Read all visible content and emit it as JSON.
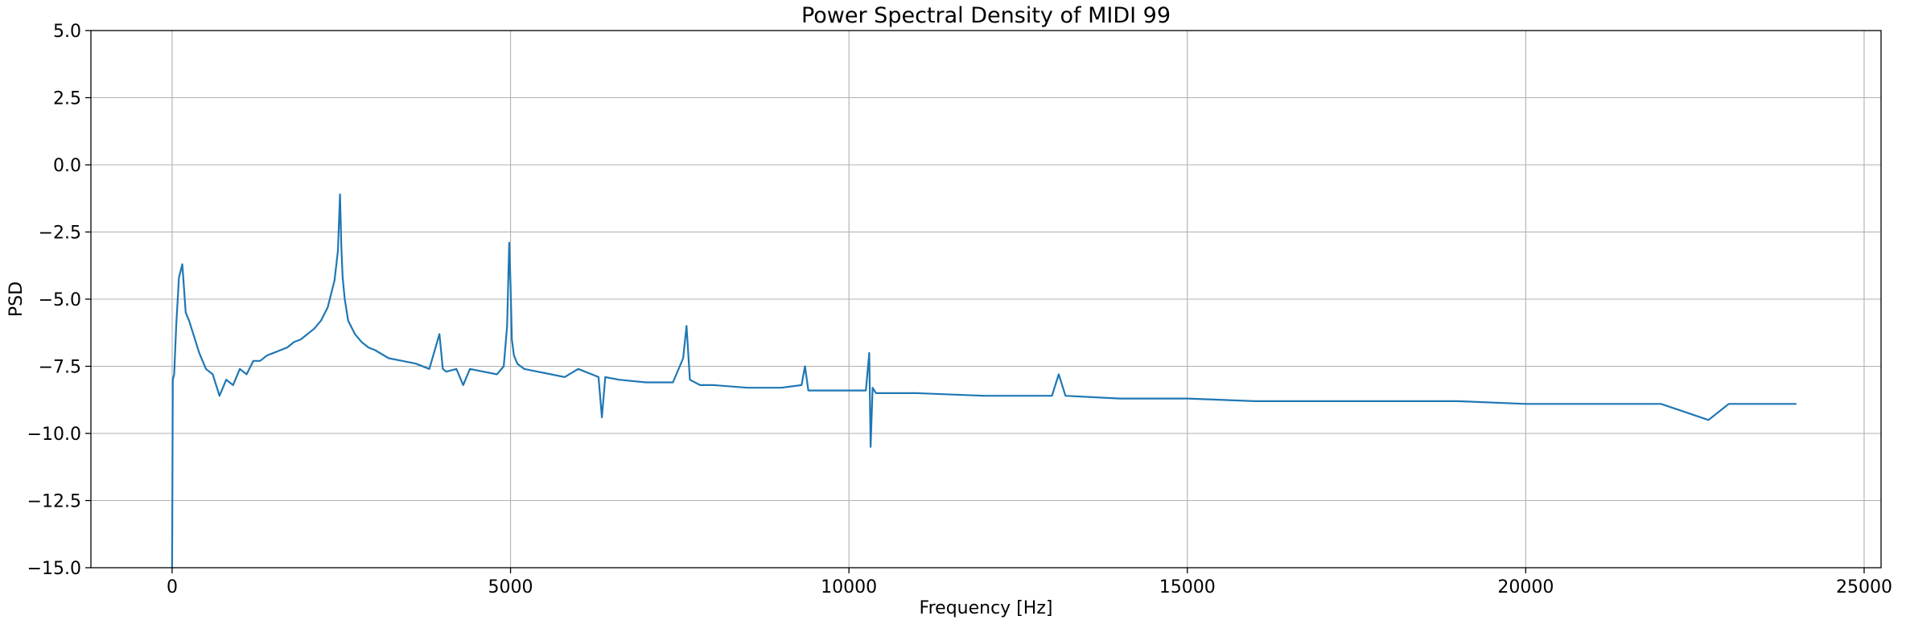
{
  "chart_data": {
    "type": "line",
    "title": "Power Spectral Density of MIDI 99",
    "xlabel": "Frequency [Hz]",
    "ylabel": "PSD",
    "xlim": [
      -1200,
      25250
    ],
    "ylim": [
      -15.0,
      5.0
    ],
    "x_ticks": [
      0,
      5000,
      10000,
      15000,
      20000,
      25000
    ],
    "x_tick_labels": [
      "0",
      "5000",
      "10000",
      "15000",
      "20000",
      "25000"
    ],
    "y_ticks": [
      5.0,
      2.5,
      0.0,
      -2.5,
      -5.0,
      -7.5,
      -10.0,
      -12.5,
      -15.0
    ],
    "y_tick_labels": [
      "5.0",
      "2.5",
      "0.0",
      "−2.5",
      "−5.0",
      "−7.5",
      "−10.0",
      "−12.5",
      "−15.0"
    ],
    "grid": true,
    "legend": "none",
    "line_color": "#1f77b4",
    "series": [
      {
        "x": [
          0,
          10,
          30,
          60,
          100,
          150,
          200,
          250,
          300,
          400,
          500,
          600,
          700,
          800,
          900,
          1000,
          1100,
          1200,
          1300,
          1400,
          1500,
          1600,
          1700,
          1800,
          1900,
          2000,
          2100,
          2200,
          2300,
          2400,
          2450,
          2480,
          2500,
          2520,
          2550,
          2600,
          2700,
          2800,
          2900,
          3000,
          3200,
          3400,
          3600,
          3800,
          3950,
          4000,
          4050,
          4200,
          4300,
          4400,
          4600,
          4800,
          4900,
          4950,
          4980,
          5000,
          5020,
          5050,
          5100,
          5200,
          5400,
          5600,
          5800,
          6000,
          6300,
          6350,
          6400,
          6600,
          7000,
          7400,
          7550,
          7600,
          7650,
          7800,
          8000,
          8500,
          9000,
          9300,
          9350,
          9400,
          10000,
          10250,
          10300,
          10320,
          10350,
          10400,
          11000,
          12000,
          13000,
          13100,
          13200,
          14000,
          15000,
          16000,
          17000,
          18000,
          19000,
          20000,
          21000,
          22000,
          22700,
          23000,
          24000
        ],
        "y": [
          -15.0,
          -8.0,
          -7.8,
          -6.0,
          -4.2,
          -3.7,
          -5.5,
          -5.8,
          -6.2,
          -7.0,
          -7.6,
          -7.8,
          -8.6,
          -8.0,
          -8.2,
          -7.6,
          -7.8,
          -7.3,
          -7.3,
          -7.1,
          -7.0,
          -6.9,
          -6.8,
          -6.6,
          -6.5,
          -6.3,
          -6.1,
          -5.8,
          -5.3,
          -4.3,
          -3.2,
          -1.1,
          -3.0,
          -4.2,
          -5.0,
          -5.8,
          -6.3,
          -6.6,
          -6.8,
          -6.9,
          -7.2,
          -7.3,
          -7.4,
          -7.6,
          -6.3,
          -7.6,
          -7.7,
          -7.6,
          -8.2,
          -7.6,
          -7.7,
          -7.8,
          -7.5,
          -6.0,
          -2.9,
          -4.5,
          -6.5,
          -7.1,
          -7.4,
          -7.6,
          -7.7,
          -7.8,
          -7.9,
          -7.6,
          -7.9,
          -9.4,
          -7.9,
          -8.0,
          -8.1,
          -8.1,
          -7.2,
          -6.0,
          -8.0,
          -8.2,
          -8.2,
          -8.3,
          -8.3,
          -8.2,
          -7.5,
          -8.4,
          -8.4,
          -8.4,
          -7.0,
          -10.5,
          -8.3,
          -8.5,
          -8.5,
          -8.6,
          -8.6,
          -7.8,
          -8.6,
          -8.7,
          -8.7,
          -8.8,
          -8.8,
          -8.8,
          -8.8,
          -8.9,
          -8.9,
          -8.9,
          -9.5,
          -8.9,
          -8.9
        ]
      }
    ]
  }
}
